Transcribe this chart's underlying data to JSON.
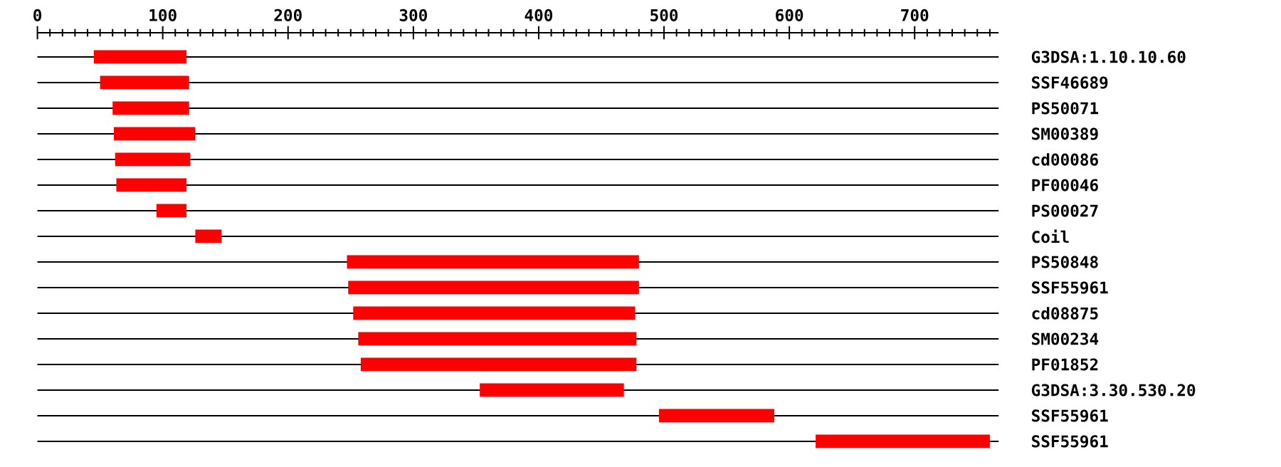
{
  "chart_data": {
    "type": "bar",
    "orientation": "horizontal",
    "grid": "y",
    "color": "#ff0000",
    "categories": [
      "G3DSA:1.10.10.60",
      "SSF46689",
      "PS50071",
      "SM00389",
      "cd00086",
      "PF00046",
      "PS00027",
      "Coil",
      "PS50848",
      "SSF55961",
      "cd08875",
      "SM00234",
      "PF01852",
      "G3DSA:3.30.530.20",
      "SSF55961",
      "SSF55961"
    ],
    "base": [
      45,
      50,
      60,
      61,
      62,
      63,
      95,
      126,
      247,
      248,
      252,
      256,
      258,
      353,
      496,
      621
    ],
    "values": [
      74,
      71,
      61,
      65,
      60,
      56,
      24,
      21,
      233,
      232,
      225,
      222,
      220,
      115,
      92,
      139
    ],
    "xlim": [
      0,
      767
    ],
    "xticks": [
      0,
      {
        "value": 10,
        "label": null
      },
      {
        "value": 20,
        "label": null
      },
      {
        "value": 30,
        "label": null
      },
      {
        "value": 40,
        "label": null
      },
      {
        "value": 50,
        "label": null
      },
      {
        "value": 60,
        "label": null
      },
      {
        "value": 70,
        "label": null
      },
      {
        "value": 80,
        "label": null
      },
      {
        "value": 90,
        "label": null
      },
      100,
      {
        "value": 110,
        "label": null
      },
      {
        "value": 120,
        "label": null
      },
      {
        "value": 130,
        "label": null
      },
      {
        "value": 140,
        "label": null
      },
      {
        "value": 150,
        "label": null
      },
      {
        "value": 160,
        "label": null
      },
      {
        "value": 170,
        "label": null
      },
      {
        "value": 180,
        "label": null
      },
      {
        "value": 190,
        "label": null
      },
      200,
      {
        "value": 210,
        "label": null
      },
      {
        "value": 220,
        "label": null
      },
      {
        "value": 230,
        "label": null
      },
      {
        "value": 240,
        "label": null
      },
      {
        "value": 250,
        "label": null
      },
      {
        "value": 260,
        "label": null
      },
      {
        "value": 270,
        "label": null
      },
      {
        "value": 280,
        "label": null
      },
      {
        "value": 290,
        "label": null
      },
      300,
      {
        "value": 310,
        "label": null
      },
      {
        "value": 320,
        "label": null
      },
      {
        "value": 330,
        "label": null
      },
      {
        "value": 340,
        "label": null
      },
      {
        "value": 350,
        "label": null
      },
      {
        "value": 360,
        "label": null
      },
      {
        "value": 370,
        "label": null
      },
      {
        "value": 380,
        "label": null
      },
      {
        "value": 390,
        "label": null
      },
      400,
      {
        "value": 410,
        "label": null
      },
      {
        "value": 420,
        "label": null
      },
      {
        "value": 430,
        "label": null
      },
      {
        "value": 440,
        "label": null
      },
      {
        "value": 450,
        "label": null
      },
      {
        "value": 460,
        "label": null
      },
      {
        "value": 470,
        "label": null
      },
      {
        "value": 480,
        "label": null
      },
      {
        "value": 490,
        "label": null
      },
      500,
      {
        "value": 510,
        "label": null
      },
      {
        "value": 520,
        "label": null
      },
      {
        "value": 530,
        "label": null
      },
      {
        "value": 540,
        "label": null
      },
      {
        "value": 550,
        "label": null
      },
      {
        "value": 560,
        "label": null
      },
      {
        "value": 570,
        "label": null
      },
      {
        "value": 580,
        "label": null
      },
      {
        "value": 590,
        "label": null
      },
      600,
      {
        "value": 610,
        "label": null
      },
      {
        "value": 620,
        "label": null
      },
      {
        "value": 630,
        "label": null
      },
      {
        "value": 640,
        "label": null
      },
      {
        "value": 650,
        "label": null
      },
      {
        "value": 660,
        "label": null
      },
      {
        "value": 670,
        "label": null
      },
      {
        "value": 680,
        "label": null
      },
      {
        "value": 690,
        "label": null
      },
      700,
      {
        "value": 710,
        "label": null
      },
      {
        "value": 720,
        "label": null
      },
      {
        "value": 730,
        "label": null
      },
      {
        "value": 740,
        "label": null
      },
      {
        "value": 750,
        "label": null
      },
      {
        "value": 760,
        "label": null
      }
    ]
  }
}
